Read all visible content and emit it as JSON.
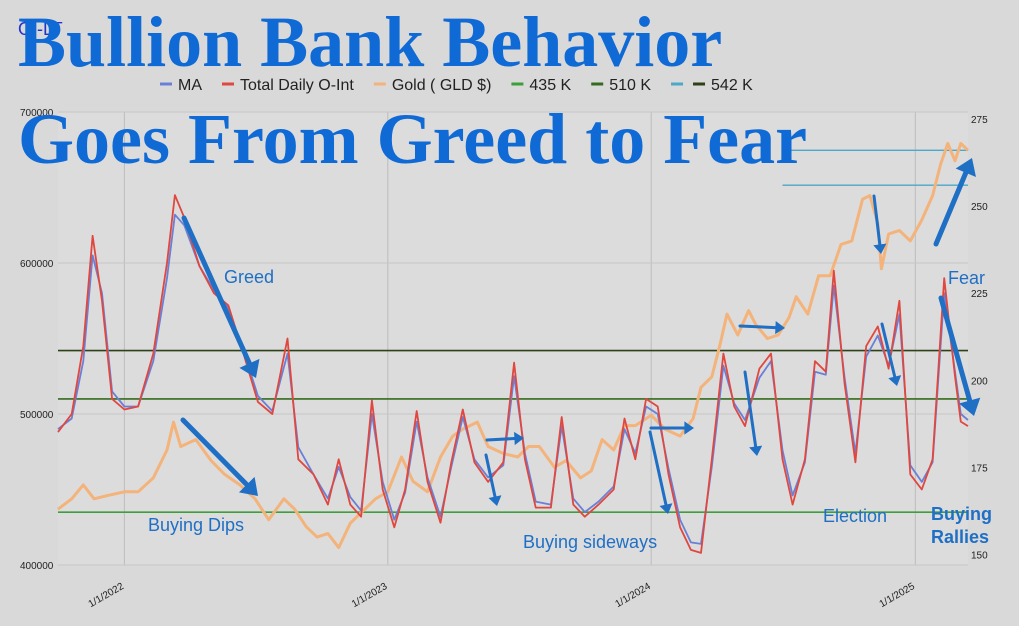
{
  "brand": "OI-LT",
  "headline": {
    "line1": "Bullion Bank Behavior",
    "line2": "Goes From Greed to Fear"
  },
  "legend": [
    {
      "label": "MA",
      "color": "#6a7fd6",
      "dash": false
    },
    {
      "label": "Total Daily O-Int",
      "color": "#e0473f",
      "dash": false
    },
    {
      "label": "Gold ( GLD $)",
      "color": "#f4b37a",
      "dash": false
    },
    {
      "label": "435 K",
      "color": "#3c9e3c",
      "dash": false
    },
    {
      "label": "510 K",
      "color": "#356b1f",
      "dash": false
    },
    {
      "label": "",
      "color": "#4aa8c8",
      "dash": true
    },
    {
      "label": "542 K",
      "color": "#2e4018",
      "dash": false
    }
  ],
  "annotations": {
    "greed": "Greed",
    "buying_dips": "Buying Dips",
    "buying_sideways": "Buying sideways",
    "election": "Election",
    "fear": "Fear",
    "buying_rallies_1": "Buying",
    "buying_rallies_2": "Rallies"
  },
  "chart_data": {
    "type": "line",
    "left_axis": {
      "ticks": [
        "400000",
        "500000",
        "600000",
        "700000"
      ],
      "ylim": [
        400000,
        700000
      ]
    },
    "right_axis": {
      "ticks": [
        "150",
        "175",
        "200",
        "225",
        "250",
        "275"
      ],
      "ylim": [
        147,
        277
      ]
    },
    "x_ticks": [
      "1/1/2022",
      "1/1/2023",
      "1/1/2024",
      "1/1/2025"
    ],
    "x_range": [
      "2021-10-01",
      "2025-03-15"
    ],
    "reference_lines": [
      {
        "name": "435 K",
        "value": 435000,
        "color": "#3c9e3c"
      },
      {
        "name": "510 K",
        "value": 510000,
        "color": "#356b1f"
      },
      {
        "name": "542 K",
        "value": 542000,
        "color": "#2e4018"
      }
    ],
    "gold_reference_lines": [
      {
        "value": 266,
        "x_start": "2024-07-01",
        "color": "#4aa8c8"
      },
      {
        "value": 256,
        "x_start": "2024-07-01",
        "color": "#4aa8c8"
      }
    ],
    "series": [
      {
        "name": "Total Daily O-Int",
        "axis": "left",
        "color": "#e0473f",
        "points": [
          [
            "2021-10-01",
            488000
          ],
          [
            "2021-10-20",
            500000
          ],
          [
            "2021-11-05",
            545000
          ],
          [
            "2021-11-18",
            618000
          ],
          [
            "2021-12-01",
            575000
          ],
          [
            "2021-12-15",
            510000
          ],
          [
            "2022-01-01",
            503000
          ],
          [
            "2022-01-20",
            505000
          ],
          [
            "2022-02-10",
            540000
          ],
          [
            "2022-03-01",
            600000
          ],
          [
            "2022-03-12",
            645000
          ],
          [
            "2022-03-25",
            630000
          ],
          [
            "2022-04-15",
            598000
          ],
          [
            "2022-05-05",
            580000
          ],
          [
            "2022-05-25",
            572000
          ],
          [
            "2022-06-15",
            540000
          ],
          [
            "2022-07-05",
            508000
          ],
          [
            "2022-07-25",
            500000
          ],
          [
            "2022-08-15",
            550000
          ],
          [
            "2022-08-30",
            470000
          ],
          [
            "2022-09-20",
            460000
          ],
          [
            "2022-10-10",
            440000
          ],
          [
            "2022-10-25",
            470000
          ],
          [
            "2022-11-10",
            440000
          ],
          [
            "2022-11-25",
            432000
          ],
          [
            "2022-12-10",
            509000
          ],
          [
            "2022-12-25",
            450000
          ],
          [
            "2023-01-10",
            425000
          ],
          [
            "2023-01-25",
            450000
          ],
          [
            "2023-02-10",
            502000
          ],
          [
            "2023-02-25",
            455000
          ],
          [
            "2023-03-15",
            428000
          ],
          [
            "2023-03-30",
            468000
          ],
          [
            "2023-04-15",
            503000
          ],
          [
            "2023-05-01",
            468000
          ],
          [
            "2023-05-20",
            455000
          ],
          [
            "2023-06-10",
            468000
          ],
          [
            "2023-06-25",
            534000
          ],
          [
            "2023-07-10",
            470000
          ],
          [
            "2023-07-25",
            438000
          ],
          [
            "2023-08-15",
            438000
          ],
          [
            "2023-08-30",
            498000
          ],
          [
            "2023-09-15",
            440000
          ],
          [
            "2023-10-01",
            432000
          ],
          [
            "2023-10-20",
            440000
          ],
          [
            "2023-11-10",
            450000
          ],
          [
            "2023-11-25",
            497000
          ],
          [
            "2023-12-10",
            470000
          ],
          [
            "2023-12-25",
            510000
          ],
          [
            "2024-01-10",
            505000
          ],
          [
            "2024-01-25",
            460000
          ],
          [
            "2024-02-10",
            425000
          ],
          [
            "2024-02-25",
            410000
          ],
          [
            "2024-03-10",
            408000
          ],
          [
            "2024-03-25",
            470000
          ],
          [
            "2024-04-10",
            540000
          ],
          [
            "2024-04-25",
            505000
          ],
          [
            "2024-05-10",
            492000
          ],
          [
            "2024-05-30",
            530000
          ],
          [
            "2024-06-15",
            540000
          ],
          [
            "2024-07-01",
            470000
          ],
          [
            "2024-07-15",
            440000
          ],
          [
            "2024-08-01",
            470000
          ],
          [
            "2024-08-15",
            535000
          ],
          [
            "2024-08-30",
            528000
          ],
          [
            "2024-09-10",
            595000
          ],
          [
            "2024-09-25",
            520000
          ],
          [
            "2024-10-10",
            468000
          ],
          [
            "2024-10-25",
            545000
          ],
          [
            "2024-11-10",
            558000
          ],
          [
            "2024-11-25",
            530000
          ],
          [
            "2024-12-10",
            575000
          ],
          [
            "2024-12-25",
            460000
          ],
          [
            "2025-01-10",
            450000
          ],
          [
            "2025-01-25",
            470000
          ],
          [
            "2025-02-10",
            590000
          ],
          [
            "2025-02-25",
            525000
          ],
          [
            "2025-03-05",
            495000
          ],
          [
            "2025-03-15",
            492000
          ]
        ]
      },
      {
        "name": "MA",
        "axis": "left",
        "color": "#6a7fd6",
        "points": [
          [
            "2021-10-01",
            490000
          ],
          [
            "2021-10-20",
            497000
          ],
          [
            "2021-11-05",
            535000
          ],
          [
            "2021-11-18",
            605000
          ],
          [
            "2021-12-01",
            580000
          ],
          [
            "2021-12-15",
            515000
          ],
          [
            "2022-01-01",
            505000
          ],
          [
            "2022-01-20",
            505000
          ],
          [
            "2022-02-10",
            535000
          ],
          [
            "2022-03-01",
            590000
          ],
          [
            "2022-03-12",
            632000
          ],
          [
            "2022-03-25",
            625000
          ],
          [
            "2022-04-15",
            598000
          ],
          [
            "2022-05-05",
            582000
          ],
          [
            "2022-05-25",
            570000
          ],
          [
            "2022-06-15",
            542000
          ],
          [
            "2022-07-05",
            512000
          ],
          [
            "2022-07-25",
            502000
          ],
          [
            "2022-08-15",
            540000
          ],
          [
            "2022-08-30",
            478000
          ],
          [
            "2022-09-20",
            460000
          ],
          [
            "2022-10-10",
            444000
          ],
          [
            "2022-10-25",
            465000
          ],
          [
            "2022-11-10",
            445000
          ],
          [
            "2022-11-25",
            436000
          ],
          [
            "2022-12-10",
            500000
          ],
          [
            "2022-12-25",
            455000
          ],
          [
            "2023-01-10",
            430000
          ],
          [
            "2023-01-25",
            448000
          ],
          [
            "2023-02-10",
            495000
          ],
          [
            "2023-02-25",
            458000
          ],
          [
            "2023-03-15",
            432000
          ],
          [
            "2023-03-30",
            465000
          ],
          [
            "2023-04-15",
            498000
          ],
          [
            "2023-05-01",
            470000
          ],
          [
            "2023-05-20",
            458000
          ],
          [
            "2023-06-10",
            466000
          ],
          [
            "2023-06-25",
            525000
          ],
          [
            "2023-07-10",
            474000
          ],
          [
            "2023-07-25",
            442000
          ],
          [
            "2023-08-15",
            440000
          ],
          [
            "2023-08-30",
            492000
          ],
          [
            "2023-09-15",
            444000
          ],
          [
            "2023-10-01",
            435000
          ],
          [
            "2023-10-20",
            442000
          ],
          [
            "2023-11-10",
            452000
          ],
          [
            "2023-11-25",
            490000
          ],
          [
            "2023-12-10",
            474000
          ],
          [
            "2023-12-25",
            505000
          ],
          [
            "2024-01-10",
            500000
          ],
          [
            "2024-01-25",
            464000
          ],
          [
            "2024-02-10",
            430000
          ],
          [
            "2024-02-25",
            415000
          ],
          [
            "2024-03-10",
            414000
          ],
          [
            "2024-03-25",
            465000
          ],
          [
            "2024-04-10",
            532000
          ],
          [
            "2024-04-25",
            507000
          ],
          [
            "2024-05-10",
            496000
          ],
          [
            "2024-05-30",
            524000
          ],
          [
            "2024-06-15",
            535000
          ],
          [
            "2024-07-01",
            476000
          ],
          [
            "2024-07-15",
            446000
          ],
          [
            "2024-08-01",
            468000
          ],
          [
            "2024-08-15",
            528000
          ],
          [
            "2024-08-30",
            526000
          ],
          [
            "2024-09-10",
            585000
          ],
          [
            "2024-09-25",
            524000
          ],
          [
            "2024-10-10",
            474000
          ],
          [
            "2024-10-25",
            538000
          ],
          [
            "2024-11-10",
            552000
          ],
          [
            "2024-11-25",
            532000
          ],
          [
            "2024-12-10",
            566000
          ],
          [
            "2024-12-25",
            466000
          ],
          [
            "2025-01-10",
            455000
          ],
          [
            "2025-01-25",
            468000
          ],
          [
            "2025-02-10",
            580000
          ],
          [
            "2025-02-25",
            528000
          ],
          [
            "2025-03-05",
            500000
          ],
          [
            "2025-03-15",
            496000
          ]
        ]
      },
      {
        "name": "Gold ( GLD $)",
        "axis": "right",
        "color": "#f4b37a",
        "points": [
          [
            "2021-10-01",
            163
          ],
          [
            "2021-10-20",
            166
          ],
          [
            "2021-11-05",
            170
          ],
          [
            "2021-11-20",
            166
          ],
          [
            "2021-12-10",
            167
          ],
          [
            "2022-01-01",
            168
          ],
          [
            "2022-01-20",
            168
          ],
          [
            "2022-02-10",
            172
          ],
          [
            "2022-03-01",
            180
          ],
          [
            "2022-03-10",
            188
          ],
          [
            "2022-03-20",
            181
          ],
          [
            "2022-04-10",
            183
          ],
          [
            "2022-05-01",
            177
          ],
          [
            "2022-05-20",
            173
          ],
          [
            "2022-06-10",
            170
          ],
          [
            "2022-07-01",
            166
          ],
          [
            "2022-07-20",
            160
          ],
          [
            "2022-08-10",
            166
          ],
          [
            "2022-08-25",
            163
          ],
          [
            "2022-09-10",
            158
          ],
          [
            "2022-09-25",
            155
          ],
          [
            "2022-10-10",
            156
          ],
          [
            "2022-10-25",
            152
          ],
          [
            "2022-11-10",
            159
          ],
          [
            "2022-11-25",
            162
          ],
          [
            "2022-12-15",
            166
          ],
          [
            "2023-01-01",
            168
          ],
          [
            "2023-01-20",
            178
          ],
          [
            "2023-02-05",
            171
          ],
          [
            "2023-02-25",
            168
          ],
          [
            "2023-03-15",
            178
          ],
          [
            "2023-04-01",
            184
          ],
          [
            "2023-04-15",
            186
          ],
          [
            "2023-05-05",
            188
          ],
          [
            "2023-05-20",
            181
          ],
          [
            "2023-06-10",
            179
          ],
          [
            "2023-06-30",
            178
          ],
          [
            "2023-07-15",
            181
          ],
          [
            "2023-07-30",
            181
          ],
          [
            "2023-08-20",
            175
          ],
          [
            "2023-09-05",
            177
          ],
          [
            "2023-09-25",
            172
          ],
          [
            "2023-10-10",
            174
          ],
          [
            "2023-10-25",
            183
          ],
          [
            "2023-11-10",
            180
          ],
          [
            "2023-11-25",
            187
          ],
          [
            "2023-12-10",
            187
          ],
          [
            "2024-01-01",
            190
          ],
          [
            "2024-01-20",
            186
          ],
          [
            "2024-02-10",
            184
          ],
          [
            "2024-02-28",
            189
          ],
          [
            "2024-03-10",
            198
          ],
          [
            "2024-03-25",
            201
          ],
          [
            "2024-04-05",
            210
          ],
          [
            "2024-04-15",
            219
          ],
          [
            "2024-04-30",
            213
          ],
          [
            "2024-05-15",
            220
          ],
          [
            "2024-05-25",
            216
          ],
          [
            "2024-06-10",
            212
          ],
          [
            "2024-06-25",
            213
          ],
          [
            "2024-07-10",
            218
          ],
          [
            "2024-07-20",
            224
          ],
          [
            "2024-08-05",
            219
          ],
          [
            "2024-08-20",
            230
          ],
          [
            "2024-09-05",
            230
          ],
          [
            "2024-09-20",
            239
          ],
          [
            "2024-10-05",
            240
          ],
          [
            "2024-10-20",
            252
          ],
          [
            "2024-10-30",
            253
          ],
          [
            "2024-11-10",
            245
          ],
          [
            "2024-11-15",
            232
          ],
          [
            "2024-11-25",
            242
          ],
          [
            "2024-12-10",
            243
          ],
          [
            "2024-12-25",
            240
          ],
          [
            "2025-01-10",
            246
          ],
          [
            "2025-01-25",
            253
          ],
          [
            "2025-02-05",
            262
          ],
          [
            "2025-02-15",
            268
          ],
          [
            "2025-02-25",
            263
          ],
          [
            "2025-03-05",
            268
          ],
          [
            "2025-03-15",
            266
          ]
        ]
      }
    ]
  }
}
